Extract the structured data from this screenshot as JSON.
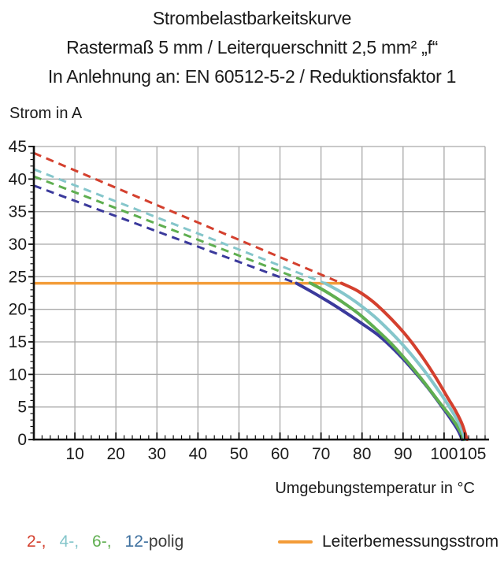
{
  "title": {
    "line1": "Strombelastbarkeitskurve",
    "line2": "Rastermaß 5 mm / Leiterquerschnitt 2,5 mm² „f“",
    "line3": "In Anlehnung an: EN 60512-5-2 / Reduktionsfaktor 1"
  },
  "axes": {
    "y_label": "Strom in A",
    "x_label": "Umgebungstemperatur in °C"
  },
  "legend": {
    "pole_items": [
      {
        "text": "2-,",
        "color": "#d4402e"
      },
      {
        "text": "4-,",
        "color": "#85c6cb"
      },
      {
        "text": "6-,",
        "color": "#5fae50"
      },
      {
        "text": "12-",
        "color": "#3d6f9e"
      },
      {
        "text": "polig",
        "color": "#3c3c3b"
      }
    ],
    "rated_current_label": "Leiterbemessungsstrom",
    "rated_current_color": "#f39c38"
  },
  "chart_data": {
    "type": "line",
    "title": "Strombelastbarkeitskurve",
    "xlabel": "Umgebungstemperatur in °C",
    "ylabel": "Strom in A",
    "xlim": [
      0,
      110
    ],
    "ylim": [
      0,
      45
    ],
    "x_major_ticks": [
      10,
      20,
      30,
      40,
      50,
      60,
      70,
      80,
      90,
      100,
      105
    ],
    "x_minor_step": 2,
    "y_major_ticks": [
      0,
      5,
      10,
      15,
      20,
      25,
      30,
      35,
      40,
      45
    ],
    "y_minor_step": 1,
    "x_gridlines": [
      10,
      20,
      30,
      40,
      50,
      60,
      70,
      80,
      90,
      100
    ],
    "y_gridlines": [
      5,
      10,
      15,
      20,
      25,
      30,
      35,
      40
    ],
    "grid": true,
    "grid_color": "#a9a9a9",
    "axis_color": "#111111",
    "legend_position": "bottom",
    "rated_current_A": 24,
    "series": [
      {
        "name": "2-polig",
        "color": "#d4402e",
        "dashed": [
          [
            0,
            44
          ],
          [
            75,
            24
          ]
        ],
        "solid": [
          [
            75,
            24
          ],
          [
            79,
            22.8
          ],
          [
            83,
            21.0
          ],
          [
            87,
            18.6
          ],
          [
            91,
            15.8
          ],
          [
            95,
            12.4
          ],
          [
            98,
            9.5
          ],
          [
            101,
            6.3
          ],
          [
            103,
            4.2
          ],
          [
            104.5,
            2.2
          ],
          [
            105.6,
            0
          ]
        ]
      },
      {
        "name": "4-polig",
        "color": "#85c6cb",
        "dashed": [
          [
            0,
            41.5
          ],
          [
            71,
            24
          ]
        ],
        "solid": [
          [
            71,
            24
          ],
          [
            75,
            22.6
          ],
          [
            79,
            20.9
          ],
          [
            83,
            18.9
          ],
          [
            87,
            16.5
          ],
          [
            91,
            13.8
          ],
          [
            95,
            10.7
          ],
          [
            99,
            7.2
          ],
          [
            102,
            4.3
          ],
          [
            104,
            2.0
          ],
          [
            105.1,
            0
          ]
        ]
      },
      {
        "name": "6-polig",
        "color": "#5fae50",
        "dashed": [
          [
            0,
            40.4
          ],
          [
            67.5,
            24
          ]
        ],
        "solid": [
          [
            67.5,
            24
          ],
          [
            71,
            22.8
          ],
          [
            75,
            21.2
          ],
          [
            79,
            19.4
          ],
          [
            83,
            17.2
          ],
          [
            87,
            14.8
          ],
          [
            91,
            12.0
          ],
          [
            95,
            8.9
          ],
          [
            99,
            5.6
          ],
          [
            102,
            3.2
          ],
          [
            104,
            1.2
          ],
          [
            104.8,
            0
          ]
        ]
      },
      {
        "name": "12-polig",
        "color": "#3b3a9c",
        "dashed": [
          [
            0,
            39
          ],
          [
            64,
            24
          ]
        ],
        "solid": [
          [
            64,
            24
          ],
          [
            68,
            22.6
          ],
          [
            72,
            21.1
          ],
          [
            76,
            19.5
          ],
          [
            80,
            17.8
          ],
          [
            84,
            16.0
          ],
          [
            88,
            13.7
          ],
          [
            92,
            11.0
          ],
          [
            96,
            8.0
          ],
          [
            100,
            4.6
          ],
          [
            102,
            2.8
          ],
          [
            103.5,
            1.3
          ],
          [
            104.4,
            0
          ]
        ]
      },
      {
        "name": "Leiterbemessungsstrom",
        "color": "#f39c38",
        "width": 3.5,
        "solid": [
          [
            0,
            24
          ],
          [
            75,
            24
          ]
        ]
      }
    ]
  }
}
